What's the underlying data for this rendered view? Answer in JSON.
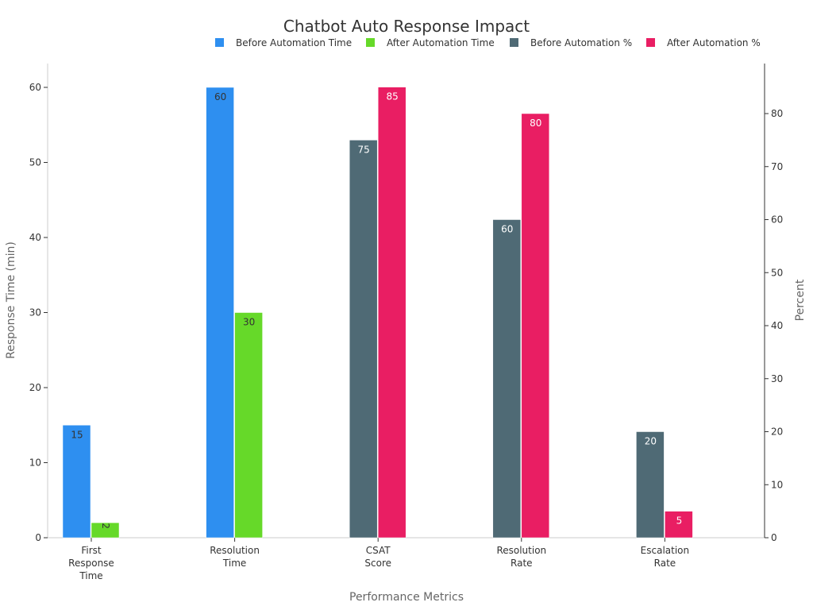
{
  "chart_data": {
    "type": "bar",
    "title": "Chatbot Auto Response Impact",
    "xlabel": "Performance Metrics",
    "ylabel_left": "Response Time (min)",
    "ylabel_right": "Percent",
    "ylim_left": [
      0,
      63
    ],
    "ylim_right": [
      0,
      89
    ],
    "yticks_left": [
      0,
      10,
      20,
      30,
      40,
      50,
      60
    ],
    "yticks_right": [
      0,
      10,
      20,
      30,
      40,
      50,
      60,
      70,
      80
    ],
    "categories": [
      [
        "First",
        "Response",
        "Time"
      ],
      [
        "Resolution",
        "Time"
      ],
      [
        "CSAT",
        "Score"
      ],
      [
        "Resolution",
        "Rate"
      ],
      [
        "Escalation",
        "Rate"
      ]
    ],
    "legend_position": "top",
    "series": [
      {
        "name": "Before Automation Time",
        "axis": "left",
        "color": "#2e8ff0",
        "label_color": "#333333",
        "values": [
          15,
          60,
          null,
          null,
          null
        ]
      },
      {
        "name": "After Automation Time",
        "axis": "left",
        "color": "#66d929",
        "label_color": "#333333",
        "values": [
          2,
          30,
          null,
          null,
          null
        ]
      },
      {
        "name": "Before Automation %",
        "axis": "right",
        "color": "#4f6a75",
        "label_color": "#ffffff",
        "values": [
          null,
          null,
          75,
          60,
          20
        ]
      },
      {
        "name": "After Automation %",
        "axis": "right",
        "color": "#e91e63",
        "label_color": "#ffffff",
        "values": [
          null,
          null,
          85,
          80,
          5
        ]
      }
    ]
  }
}
